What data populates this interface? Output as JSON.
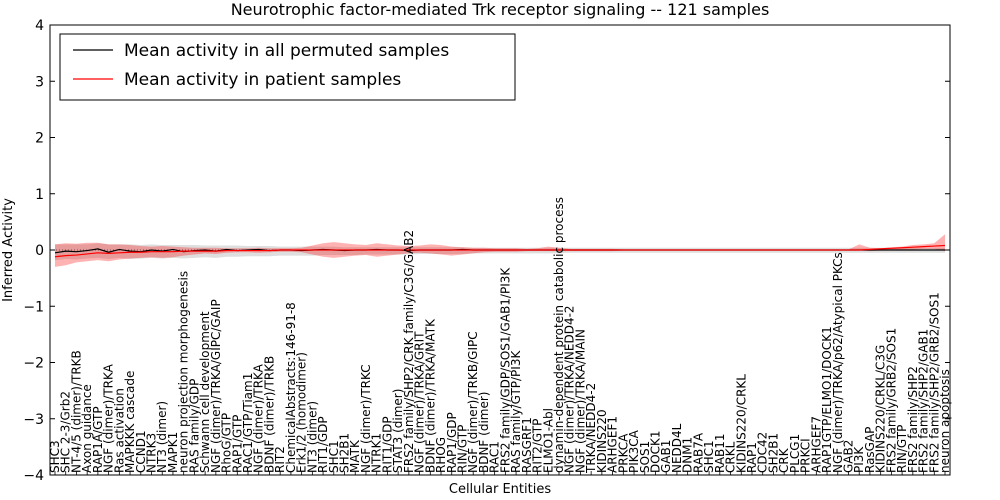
{
  "chart_data": {
    "type": "line",
    "title": "Neurotrophic factor-mediated Trk receptor signaling -- 121 samples",
    "xlabel": "Cellular Entities",
    "ylabel": "Inferred Activity",
    "ylim": [
      -4,
      4
    ],
    "yticks": [
      -4,
      -3,
      -2,
      -1,
      0,
      1,
      2,
      3,
      4
    ],
    "grid": false,
    "legend_position": "top-left",
    "x": [
      "SHC3",
      "SHC 2-3/Grb2",
      "NT-4/5 (dimer)/TRKB",
      "Axon guidance",
      "RAP1A/GTP",
      "NGF (dimer)/TRKA",
      "Ras activation",
      "MAPKKK cascade",
      "CCND1",
      "NTRK3",
      "NT3 (dimer)",
      "MAPK1",
      "neuron projection morphogenesis",
      "RAS family/GDP",
      "Schwann cell development",
      "NGF (dimer)/TRKA/GIPC/GAIP",
      "RhoG/GTP",
      "RAP1/GTP",
      "RAC1/GTP/Tiam1",
      "NGF (dimer)/TRKA",
      "BDNF (dimer)/TRKB",
      "RIT2",
      "ChemicalAbstracts:146-91-8",
      "Erk1/2 (homodimer)",
      "NT3 (dimer)",
      "RIT1/GDP",
      "SHC1",
      "SH2B1",
      "MATK",
      "NGF (dimer)/TRKC",
      "NTRK1",
      "RIT1/GDP",
      "STAT3 (dimer)",
      "FRS2 family/SHP2/CRK family/C3G/GAB2",
      "NGF (dimer)/TRKA/GRIT",
      "BDNF (dimer)/TRKA/MATK",
      "RHOG",
      "RAP1/GDP",
      "RIN/GTP",
      "NGF (dimer)/TRKB/GIPC",
      "BDNF (dimer)",
      "RAC1",
      "FRS2 family/GDP/SOS1/GAB1/PI3K",
      "RAS family/GTP/PI3K",
      "RASGRF1",
      "RIT2/GTP",
      "ELMO1-Abl",
      "dynamin-dependent protein catabolic process",
      "NGF (dimer)/TRKA/NEDD4-2",
      "NGF (dimer)/TRKA/MAIN",
      "TRKA/NEDD4-2",
      "KIDINS220",
      "ARHGEF1",
      "PRKCA",
      "PIK3CA",
      "SOS1",
      "DOCK1",
      "GAB1",
      "NEDD4L",
      "DNM1",
      "RAB7A",
      "SHC1",
      "RAB11",
      "CRKL",
      "KIDINS220/CRKL",
      "RAP1",
      "CDC42",
      "SH2B1",
      "CRK",
      "PLCG1",
      "PRKCI",
      "ARHGEF7",
      "RAP1GTP/ELMO1/DOCK1",
      "NGF (dimer)/TRKA/p62/Atypical PKCs",
      "GAB2",
      "PI3K",
      "RasGAP",
      "KIDINS220/CRKL/C3G",
      "FRS2 family/GRB2/SOS1",
      "RIN/GTP",
      "FRS2 family/SHP2",
      "FRS2 family/SHP2/GAB1",
      "FRS2 family/SHP2/GRB2/SOS1",
      "neuron apoptosis"
    ],
    "series": [
      {
        "name": "Mean activity in all permuted samples",
        "color": "#000000",
        "values": [
          -0.05,
          -0.02,
          -0.03,
          -0.01,
          0.02,
          -0.04,
          0.01,
          -0.02,
          -0.03,
          0.0,
          -0.02,
          0.01,
          -0.03,
          -0.01,
          0.0,
          -0.02,
          0.01,
          -0.01,
          0.0,
          0.01,
          -0.01,
          0.0,
          0.0,
          -0.01,
          0.0,
          0.01,
          0.0,
          -0.01,
          0.0,
          0.0,
          0.01,
          0.0,
          0.0,
          -0.01,
          0.0,
          0.0,
          0.0,
          0.0,
          0.01,
          0.0,
          0.0,
          0.0,
          0.0,
          0.0,
          0.0,
          0.0,
          0.0,
          0.0,
          0.0,
          0.0,
          0.0,
          0.0,
          0.0,
          0.0,
          0.0,
          0.0,
          0.0,
          0.0,
          0.0,
          0.0,
          0.0,
          0.0,
          0.0,
          0.0,
          0.0,
          0.0,
          0.0,
          0.0,
          0.0,
          0.0,
          0.0,
          0.0,
          0.0,
          0.0,
          0.0,
          0.0,
          0.0,
          0.0,
          0.0,
          0.0,
          0.0,
          0.0,
          0.0,
          0.0
        ],
        "band_low": [
          -0.18,
          -0.16,
          -0.17,
          -0.15,
          -0.14,
          -0.16,
          -0.14,
          -0.16,
          -0.15,
          -0.14,
          -0.15,
          -0.14,
          -0.15,
          -0.14,
          -0.13,
          -0.14,
          -0.12,
          -0.12,
          -0.11,
          -0.11,
          -0.11,
          -0.1,
          -0.1,
          -0.1,
          -0.1,
          -0.09,
          -0.09,
          -0.09,
          -0.09,
          -0.08,
          -0.08,
          -0.08,
          -0.08,
          -0.08,
          -0.07,
          -0.07,
          -0.07,
          -0.07,
          -0.07,
          -0.06,
          -0.06,
          -0.06,
          -0.06,
          -0.06,
          -0.06,
          -0.06,
          -0.06,
          -0.06,
          -0.05,
          -0.05,
          -0.05,
          -0.05,
          -0.05,
          -0.05,
          -0.05,
          -0.05,
          -0.05,
          -0.05,
          -0.05,
          -0.05,
          -0.05,
          -0.05,
          -0.05,
          -0.05,
          -0.05,
          -0.05,
          -0.05,
          -0.05,
          -0.05,
          -0.05,
          -0.05,
          -0.05,
          -0.05,
          -0.05,
          -0.05,
          -0.05,
          -0.05,
          -0.05,
          -0.05,
          -0.05,
          -0.05,
          -0.05,
          -0.05,
          -0.05
        ],
        "band_high": [
          0.1,
          0.1,
          0.1,
          0.1,
          0.12,
          0.1,
          0.1,
          0.1,
          0.09,
          0.1,
          0.09,
          0.09,
          0.09,
          0.09,
          0.08,
          0.08,
          0.08,
          0.08,
          0.07,
          0.07,
          0.07,
          0.06,
          0.06,
          0.06,
          0.06,
          0.06,
          0.06,
          0.05,
          0.05,
          0.05,
          0.05,
          0.05,
          0.05,
          0.05,
          0.05,
          0.05,
          0.05,
          0.05,
          0.05,
          0.04,
          0.04,
          0.04,
          0.04,
          0.04,
          0.04,
          0.04,
          0.04,
          0.04,
          0.04,
          0.04,
          0.04,
          0.04,
          0.04,
          0.04,
          0.04,
          0.04,
          0.04,
          0.04,
          0.04,
          0.04,
          0.04,
          0.04,
          0.04,
          0.04,
          0.04,
          0.04,
          0.04,
          0.04,
          0.04,
          0.04,
          0.04,
          0.04,
          0.04,
          0.04,
          0.04,
          0.04,
          0.04,
          0.04,
          0.04,
          0.04,
          0.04,
          0.04,
          0.04,
          0.04
        ]
      },
      {
        "name": "Mean activity in patient samples",
        "color": "#ff0000",
        "values": [
          -0.12,
          -0.1,
          -0.09,
          -0.07,
          -0.05,
          -0.06,
          -0.05,
          -0.04,
          -0.04,
          -0.03,
          -0.03,
          -0.03,
          -0.02,
          -0.02,
          -0.02,
          -0.02,
          -0.01,
          -0.01,
          -0.01,
          -0.01,
          -0.01,
          0.0,
          0.0,
          0.0,
          0.0,
          0.0,
          0.0,
          0.0,
          0.0,
          0.0,
          0.0,
          0.0,
          0.0,
          0.0,
          0.0,
          0.0,
          0.0,
          0.0,
          0.0,
          0.0,
          0.0,
          0.0,
          0.0,
          0.0,
          0.0,
          0.0,
          0.0,
          0.0,
          0.0,
          0.0,
          0.0,
          0.0,
          0.0,
          0.0,
          0.0,
          0.0,
          0.0,
          0.0,
          0.0,
          0.0,
          0.0,
          0.0,
          0.0,
          0.0,
          0.0,
          0.0,
          0.0,
          0.0,
          0.0,
          0.0,
          0.0,
          0.0,
          0.0,
          0.0,
          0.0,
          0.0,
          0.01,
          0.02,
          0.03,
          0.04,
          0.05,
          0.06,
          0.07,
          0.08
        ],
        "band_low": [
          -0.3,
          -0.27,
          -0.22,
          -0.2,
          -0.18,
          -0.2,
          -0.17,
          -0.15,
          -0.14,
          -0.13,
          -0.14,
          -0.13,
          -0.1,
          -0.08,
          -0.06,
          -0.07,
          -0.05,
          -0.04,
          -0.04,
          -0.05,
          -0.04,
          -0.03,
          -0.03,
          -0.04,
          -0.08,
          -0.12,
          -0.14,
          -0.12,
          -0.1,
          -0.09,
          -0.12,
          -0.1,
          -0.08,
          -0.06,
          -0.05,
          -0.06,
          -0.08,
          -0.1,
          -0.08,
          -0.06,
          -0.04,
          -0.03,
          -0.03,
          -0.03,
          -0.02,
          -0.02,
          -0.02,
          -0.02,
          -0.02,
          -0.02,
          -0.02,
          -0.02,
          -0.02,
          -0.01,
          -0.01,
          -0.01,
          -0.01,
          -0.01,
          -0.01,
          -0.01,
          -0.01,
          -0.01,
          -0.01,
          -0.01,
          -0.01,
          -0.01,
          -0.01,
          -0.01,
          -0.01,
          -0.01,
          -0.01,
          -0.01,
          -0.01,
          -0.01,
          -0.01,
          -0.01,
          -0.02,
          -0.01,
          0.0,
          0.0,
          0.01,
          0.02,
          0.02,
          -0.02
        ],
        "band_high": [
          0.1,
          0.12,
          0.11,
          0.13,
          0.13,
          0.1,
          0.1,
          0.09,
          0.07,
          0.06,
          0.07,
          0.06,
          0.05,
          0.04,
          0.04,
          0.04,
          0.03,
          0.03,
          0.03,
          0.04,
          0.03,
          0.03,
          0.03,
          0.04,
          0.08,
          0.12,
          0.14,
          0.12,
          0.1,
          0.09,
          0.12,
          0.1,
          0.08,
          0.07,
          0.08,
          0.1,
          0.09,
          0.06,
          0.05,
          0.04,
          0.04,
          0.03,
          0.03,
          0.03,
          0.02,
          0.03,
          0.06,
          0.04,
          0.02,
          0.02,
          0.02,
          0.02,
          0.02,
          0.01,
          0.01,
          0.01,
          0.01,
          0.01,
          0.01,
          0.01,
          0.01,
          0.01,
          0.01,
          0.01,
          0.01,
          0.01,
          0.01,
          0.01,
          0.01,
          0.01,
          0.01,
          0.01,
          0.01,
          0.01,
          0.01,
          0.1,
          0.04,
          0.03,
          0.05,
          0.06,
          0.09,
          0.1,
          0.12,
          0.28
        ]
      }
    ]
  }
}
